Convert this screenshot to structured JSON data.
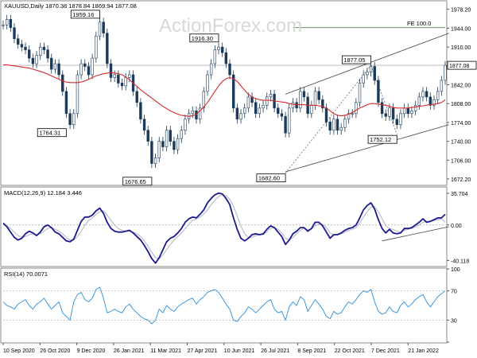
{
  "chart_data": {
    "type": "line",
    "symbol_header": "XAUUSD,Daily  1870.38 1878.84 1869.94 1877.08",
    "watermark": "ActionForex.com",
    "x_tick_labels": [
      "10 Sep 2020",
      "26 Oct 2020",
      "9 Dec 2020",
      "26 Jan 2021",
      "11 Mar 2021",
      "27 Apr 2021",
      "10 Jun 2021",
      "26 Jul 2021",
      "8 Sep 2021",
      "22 Oct 2021",
      "7 Dec 2021",
      "21 Jan 2022"
    ],
    "price_panel": {
      "y_ticks": [
        1978.2,
        1944.0,
        1910.0,
        1876.0,
        1842.0,
        1808.0,
        1774.0,
        1740.0,
        1706.0,
        1672.2
      ],
      "ylim": [
        1662,
        1992
      ],
      "last_price": 1877.08,
      "last_price_label": "1877.08",
      "fe_label": "FE 100.0",
      "fe_level": 1945,
      "annotations": [
        {
          "label": "1959.16",
          "value": 1959.16,
          "idx": 26
        },
        {
          "label": "1764.31",
          "value": 1764.31,
          "idx": 17
        },
        {
          "label": "1676.65",
          "value": 1676.65,
          "idx": 40
        },
        {
          "label": "1916.30",
          "value": 1916.3,
          "idx": 58
        },
        {
          "label": "1682.60",
          "value": 1682.6,
          "idx": 76
        },
        {
          "label": "1877.05",
          "value": 1877.05,
          "idx": 99
        },
        {
          "label": "1752.12",
          "value": 1752.12,
          "idx": 106
        }
      ],
      "close": [
        1950,
        1960,
        1945,
        1925,
        1915,
        1910,
        1905,
        1890,
        1880,
        1895,
        1910,
        1905,
        1890,
        1870,
        1880,
        1860,
        1830,
        1790,
        1770,
        1790,
        1860,
        1880,
        1875,
        1860,
        1890,
        1930,
        1955,
        1935,
        1880,
        1855,
        1860,
        1845,
        1840,
        1855,
        1860,
        1830,
        1810,
        1780,
        1760,
        1740,
        1700,
        1710,
        1740,
        1730,
        1760,
        1740,
        1725,
        1745,
        1760,
        1780,
        1790,
        1795,
        1780,
        1800,
        1830,
        1860,
        1880,
        1905,
        1910,
        1900,
        1880,
        1860,
        1800,
        1780,
        1790,
        1800,
        1820,
        1810,
        1790,
        1800,
        1805,
        1820,
        1825,
        1800,
        1790,
        1785,
        1755,
        1800,
        1810,
        1800,
        1830,
        1820,
        1790,
        1805,
        1830,
        1815,
        1800,
        1775,
        1760,
        1780,
        1760,
        1765,
        1780,
        1790,
        1790,
        1810,
        1845,
        1860,
        1865,
        1875,
        1850,
        1810,
        1790,
        1785,
        1800,
        1780,
        1770,
        1790,
        1800,
        1790,
        1795,
        1805,
        1820,
        1830,
        1820,
        1805,
        1815,
        1830,
        1850,
        1877
      ],
      "ma": [
        1878,
        1878,
        1877,
        1876,
        1875,
        1874,
        1873,
        1872,
        1870,
        1868,
        1866,
        1864,
        1861,
        1858,
        1855,
        1852,
        1849,
        1847,
        1846,
        1846,
        1846,
        1847,
        1849,
        1852,
        1855,
        1858,
        1860,
        1862,
        1863,
        1864,
        1863,
        1862,
        1860,
        1856,
        1851,
        1845,
        1839,
        1833,
        1828,
        1823,
        1818,
        1813,
        1808,
        1803,
        1799,
        1795,
        1792,
        1789,
        1787,
        1786,
        1785,
        1786,
        1789,
        1795,
        1802,
        1810,
        1820,
        1830,
        1840,
        1848,
        1853,
        1855,
        1853,
        1848,
        1840,
        1832,
        1825,
        1820,
        1817,
        1815,
        1814,
        1814,
        1814,
        1813,
        1812,
        1811,
        1810,
        1808,
        1807,
        1806,
        1806,
        1806,
        1805,
        1805,
        1805,
        1804,
        1803,
        1800,
        1795,
        1790,
        1787,
        1786,
        1787,
        1789,
        1792,
        1796,
        1800,
        1803,
        1806,
        1808,
        1808,
        1807,
        1806,
        1805,
        1803,
        1801,
        1800,
        1800,
        1800,
        1800,
        1801,
        1802,
        1803,
        1804,
        1805,
        1806,
        1807,
        1808,
        1810,
        1815
      ],
      "channel": {
        "lower": [
          [
            76,
            1685
          ],
          [
            120,
            1770
          ]
        ],
        "upper": [
          [
            76,
            1825
          ],
          [
            120,
            1935
          ]
        ]
      }
    },
    "macd_panel": {
      "title": "MACD(12,26,9) 12.184 3.446",
      "y_ticks": [
        35.704,
        0.0,
        -40.118
      ],
      "ylim": [
        -46,
        42
      ],
      "macd": [
        2,
        -2,
        -8,
        -14,
        -17,
        -15,
        -10,
        -7,
        -9,
        -12,
        -8,
        -2,
        0,
        -3,
        -8,
        -10,
        -14,
        -18,
        -19,
        -16,
        -6,
        4,
        9,
        9,
        11,
        16,
        19,
        13,
        3,
        -4,
        -7,
        -8,
        -8,
        -7,
        -6,
        -9,
        -13,
        -17,
        -23,
        -30,
        -38,
        -43,
        -37,
        -28,
        -19,
        -15,
        -13,
        -9,
        -4,
        3,
        7,
        9,
        8,
        12,
        17,
        25,
        30,
        34,
        36,
        35,
        30,
        23,
        8,
        -5,
        -15,
        -18,
        -15,
        -11,
        -10,
        -11,
        -10,
        -5,
        -1,
        -3,
        -8,
        -13,
        -22,
        -17,
        -10,
        -7,
        -3,
        -3,
        -7,
        -4,
        3,
        3,
        -1,
        -8,
        -15,
        -11,
        -11,
        -9,
        -6,
        -4,
        -3,
        0,
        8,
        17,
        22,
        25,
        18,
        6,
        -4,
        -9,
        -5,
        -9,
        -10,
        -9,
        -4,
        -4,
        -3,
        0,
        3,
        7,
        3,
        4,
        6,
        8,
        8,
        12
      ],
      "signal": [
        0,
        -1,
        -4,
        -8,
        -12,
        -14,
        -13,
        -11,
        -10,
        -11,
        -10,
        -7,
        -4,
        -3,
        -5,
        -7,
        -10,
        -14,
        -17,
        -17,
        -13,
        -7,
        0,
        5,
        8,
        12,
        15,
        16,
        11,
        5,
        0,
        -4,
        -6,
        -7,
        -7,
        -8,
        -10,
        -13,
        -18,
        -24,
        -31,
        -37,
        -38,
        -34,
        -28,
        -22,
        -17,
        -13,
        -9,
        -4,
        1,
        5,
        7,
        9,
        12,
        17,
        23,
        28,
        32,
        34,
        33,
        29,
        21,
        10,
        -1,
        -10,
        -14,
        -14,
        -12,
        -11,
        -11,
        -8,
        -4,
        -3,
        -5,
        -9,
        -15,
        -17,
        -14,
        -10,
        -6,
        -4,
        -5,
        -5,
        -1,
        1,
        1,
        -3,
        -9,
        -11,
        -11,
        -10,
        -8,
        -6,
        -5,
        -3,
        2,
        9,
        15,
        20,
        21,
        15,
        7,
        -1,
        -4,
        -5,
        -7,
        -8,
        -6,
        -5,
        -4,
        -2,
        0,
        3,
        4,
        4,
        5,
        6,
        7,
        3
      ],
      "trendline": [
        [
          102,
          -18
        ],
        [
          120,
          -2
        ]
      ]
    },
    "rsi_panel": {
      "title": "RSI(14) 70.0071",
      "y_ticks": [
        100,
        70,
        30,
        0
      ],
      "ylim": [
        0,
        100
      ],
      "values": [
        55,
        50,
        48,
        45,
        52,
        55,
        58,
        50,
        45,
        52,
        55,
        60,
        52,
        45,
        50,
        55,
        40,
        35,
        30,
        55,
        65,
        68,
        58,
        55,
        60,
        72,
        75,
        60,
        40,
        42,
        45,
        42,
        40,
        48,
        52,
        45,
        40,
        35,
        32,
        30,
        25,
        30,
        45,
        40,
        50,
        45,
        42,
        48,
        52,
        55,
        58,
        60,
        52,
        58,
        62,
        68,
        70,
        72,
        68,
        60,
        52,
        45,
        30,
        28,
        35,
        40,
        48,
        45,
        40,
        45,
        50,
        55,
        58,
        45,
        40,
        42,
        30,
        48,
        55,
        50,
        62,
        58,
        42,
        50,
        58,
        52,
        45,
        35,
        32,
        42,
        38,
        40,
        48,
        55,
        52,
        58,
        65,
        70,
        68,
        72,
        55,
        42,
        38,
        40,
        48,
        42,
        40,
        50,
        55,
        48,
        52,
        58,
        62,
        65,
        55,
        48,
        55,
        62,
        66,
        70
      ]
    }
  }
}
